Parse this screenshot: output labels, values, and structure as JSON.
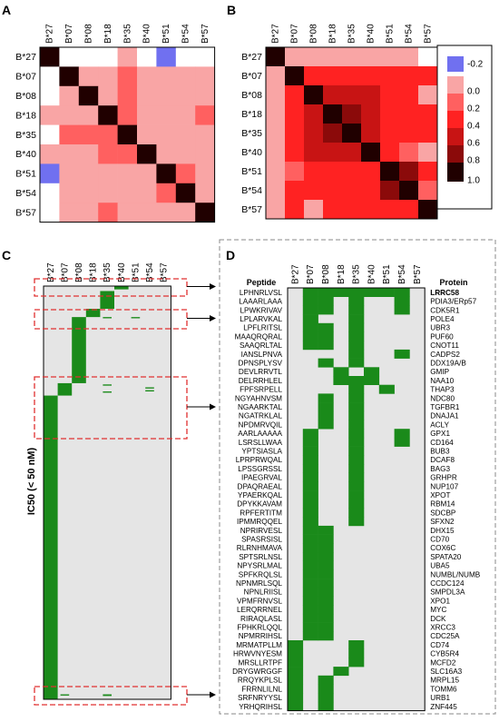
{
  "panels": {
    "a": "A",
    "b": "B",
    "c": "C",
    "d": "D"
  },
  "alleles": [
    "B*27",
    "B*07",
    "B*08",
    "B*18",
    "B*35",
    "B*40",
    "B*51",
    "B*54",
    "B*57"
  ],
  "colors": {
    "neg": "#7070f0",
    "c0": "#f9a5a5",
    "c1": "#ff6060",
    "c2": "#ff2222",
    "c3": "#c81414",
    "c4": "#8b0a0a",
    "c5": "#200000",
    "white": "#ffffff",
    "green": "#1a8a1a",
    "grey": "#e5e5e5",
    "dash": "#e03030"
  },
  "colorbar": {
    "labels": [
      "-0.2",
      "0.0",
      "0.2",
      "0.4",
      "0.6",
      "0.8",
      "1.0"
    ]
  },
  "ic50_label": "IC50 (< 50 nM)",
  "panel_d": {
    "peptide_header": "Peptide",
    "protein_header": "Protein"
  },
  "chart_data": [
    {
      "type": "heatmap",
      "panel": "A",
      "x": [
        "B*27",
        "B*07",
        "B*08",
        "B*18",
        "B*35",
        "B*40",
        "B*51",
        "B*54",
        "B*57"
      ],
      "y": [
        "B*27",
        "B*07",
        "B*08",
        "B*18",
        "B*35",
        "B*40",
        "B*51",
        "B*54",
        "B*57"
      ],
      "values": [
        [
          1.0,
          0.0,
          0.0,
          0.0,
          0.1,
          0.0,
          -0.2,
          0.0,
          0.0
        ],
        [
          0.0,
          1.0,
          0.1,
          0.1,
          0.2,
          0.1,
          0.1,
          0.1,
          0.1
        ],
        [
          0.0,
          0.1,
          1.0,
          0.1,
          0.2,
          0.1,
          0.1,
          0.1,
          0.1
        ],
        [
          0.1,
          0.1,
          0.1,
          1.0,
          0.2,
          0.1,
          0.1,
          0.1,
          0.2
        ],
        [
          0.0,
          0.2,
          0.2,
          0.2,
          1.0,
          0.1,
          0.1,
          0.1,
          0.1
        ],
        [
          0.1,
          0.1,
          0.1,
          0.2,
          0.2,
          1.0,
          0.1,
          0.1,
          0.1
        ],
        [
          -0.2,
          0.1,
          0.1,
          0.1,
          0.1,
          0.1,
          1.0,
          0.2,
          0.1
        ],
        [
          0.0,
          0.1,
          0.1,
          0.1,
          0.1,
          0.1,
          0.2,
          1.0,
          0.1
        ],
        [
          0.0,
          0.1,
          0.1,
          0.2,
          0.1,
          0.1,
          0.1,
          0.1,
          1.0
        ]
      ],
      "scale": [
        -0.2,
        1.0
      ]
    },
    {
      "type": "heatmap",
      "panel": "B",
      "x": [
        "B*27",
        "B*07",
        "B*08",
        "B*18",
        "B*35",
        "B*40",
        "B*51",
        "B*54",
        "B*57"
      ],
      "y": [
        "B*27",
        "B*07",
        "B*08",
        "B*18",
        "B*35",
        "B*40",
        "B*51",
        "B*54",
        "B*57"
      ],
      "values": [
        [
          1.0,
          0.1,
          0.1,
          0.1,
          0.1,
          0.1,
          0.1,
          0.1,
          0.0
        ],
        [
          0.1,
          1.0,
          0.3,
          0.3,
          0.3,
          0.3,
          0.3,
          0.3,
          0.3
        ],
        [
          0.1,
          0.3,
          1.0,
          0.4,
          0.4,
          0.4,
          0.3,
          0.3,
          0.1
        ],
        [
          0.1,
          0.3,
          0.4,
          1.0,
          0.6,
          0.4,
          0.3,
          0.3,
          0.3
        ],
        [
          0.1,
          0.3,
          0.4,
          0.6,
          1.0,
          0.4,
          0.3,
          0.3,
          0.3
        ],
        [
          0.1,
          0.3,
          0.4,
          0.4,
          0.4,
          1.0,
          0.3,
          0.2,
          0.1
        ],
        [
          0.1,
          0.2,
          0.3,
          0.3,
          0.3,
          0.3,
          1.0,
          0.6,
          0.3
        ],
        [
          0.1,
          0.3,
          0.3,
          0.3,
          0.3,
          0.3,
          0.6,
          1.0,
          0.2
        ],
        [
          0.1,
          0.3,
          0.1,
          0.3,
          0.3,
          0.3,
          0.3,
          0.3,
          1.0
        ]
      ],
      "scale": [
        -0.2,
        1.0
      ]
    },
    {
      "type": "heatmap",
      "panel": "C",
      "x": [
        "B*27",
        "B*07",
        "B*08",
        "B*18",
        "B*35",
        "B*40",
        "B*51",
        "B*54",
        "B*57"
      ],
      "description_binary": true,
      "bands": [
        {
          "col": 5,
          "start": 0.0,
          "end": 0.008,
          "thin": false
        },
        {
          "col": 4,
          "start": 0.012,
          "end": 0.055,
          "thin": false
        },
        {
          "col": 3,
          "start": 0.055,
          "end": 0.075,
          "thin": false
        },
        {
          "col": 2,
          "start": 0.075,
          "end": 0.235,
          "thin": false
        },
        {
          "col": 1,
          "start": 0.235,
          "end": 0.265,
          "thin": false
        },
        {
          "col": 0,
          "start": 0.265,
          "end": 1.0,
          "thin": false
        },
        {
          "col": 4,
          "start": 0.075,
          "end": 0.078,
          "thin": true
        },
        {
          "col": 6,
          "start": 0.075,
          "end": 0.078,
          "thin": true
        },
        {
          "col": 4,
          "start": 0.238,
          "end": 0.241,
          "thin": true
        },
        {
          "col": 4,
          "start": 0.255,
          "end": 0.258,
          "thin": true
        },
        {
          "col": 7,
          "start": 0.245,
          "end": 0.248,
          "thin": true
        },
        {
          "col": 7,
          "start": 0.252,
          "end": 0.255,
          "thin": true
        },
        {
          "col": 1,
          "start": 0.988,
          "end": 0.991,
          "thin": true
        },
        {
          "col": 4,
          "start": 0.988,
          "end": 0.992,
          "thin": true
        }
      ]
    },
    {
      "type": "heatmap",
      "panel": "D",
      "x": [
        "B*27",
        "B*07",
        "B*08",
        "B*18",
        "B*35",
        "B*40",
        "B*51",
        "B*54",
        "B*57"
      ],
      "rows": [
        {
          "peptide": "LPHNRLVSL",
          "protein": "LRRC58",
          "highlight": "bold-purple",
          "cols": [
            1,
            2,
            3,
            4,
            5,
            6,
            7
          ]
        },
        {
          "peptide": "LAAARLAAA",
          "protein": "PDIA3/ERp57",
          "highlight": "purple",
          "cols": [
            1,
            2,
            4,
            7
          ]
        },
        {
          "peptide": "LPWKRIVAV",
          "protein": "CDK5R1",
          "highlight": "purple",
          "cols": [
            1,
            2,
            4,
            7
          ]
        },
        {
          "peptide": "LPLARVKAL",
          "protein": "POLE4",
          "highlight": "purple",
          "cols": [
            1,
            4
          ]
        },
        {
          "peptide": "LPFLRITSL",
          "protein": "UBR3",
          "highlight": "purple",
          "cols": [
            1,
            2,
            4
          ]
        },
        {
          "peptide": "MAAQRQRAL",
          "protein": "PUF60",
          "highlight": "purple",
          "cols": [
            1,
            2,
            4
          ]
        },
        {
          "peptide": "SAAQRLTAL",
          "protein": "CNOT11",
          "highlight": "purple",
          "cols": [
            1,
            2,
            4
          ]
        },
        {
          "peptide": "IANSLPNVA",
          "protein": "CADPS2",
          "highlight": "",
          "cols": [
            4,
            7
          ]
        },
        {
          "peptide": "DPNSPLYSV",
          "protein": "DDX19A/B",
          "highlight": "",
          "cols": [
            2,
            4
          ]
        },
        {
          "peptide": "DEVLRRVTL",
          "protein": "GMIP",
          "highlight": "",
          "cols": [
            3,
            5
          ]
        },
        {
          "peptide": "DELRRHLEL",
          "protein": "NAA10",
          "highlight": "",
          "cols": [
            3,
            4,
            5
          ]
        },
        {
          "peptide": "FPFSRPELL",
          "protein": "THAP3",
          "highlight": "",
          "cols": [
            4,
            6
          ]
        },
        {
          "peptide": "NGYAHNVSM",
          "protein": "NDC80",
          "highlight": "",
          "cols": [
            2,
            4
          ]
        },
        {
          "peptide": "NGAARKTAL",
          "protein": "TGFBR1",
          "highlight": "",
          "cols": [
            2,
            4
          ]
        },
        {
          "peptide": "NGATRKLAL",
          "protein": "DNAJA1",
          "highlight": "",
          "cols": [
            2,
            4
          ]
        },
        {
          "peptide": "NPDMRVQIL",
          "protein": "ACLY",
          "highlight": "",
          "cols": [
            2,
            4
          ]
        },
        {
          "peptide": "AARLAAAAA",
          "protein": "GPX1",
          "highlight": "",
          "cols": [
            1,
            4,
            7
          ]
        },
        {
          "peptide": "LSRSLLWAA",
          "protein": "CD164",
          "highlight": "",
          "cols": [
            1,
            4,
            7
          ]
        },
        {
          "peptide": "YPTSIASLA",
          "protein": "BUB3",
          "highlight": "",
          "cols": [
            1,
            4
          ]
        },
        {
          "peptide": "LPRPRWQAL",
          "protein": "DCAF8",
          "highlight": "",
          "cols": [
            1,
            4
          ]
        },
        {
          "peptide": "LPSSGRSSL",
          "protein": "BAG3",
          "highlight": "",
          "cols": [
            1,
            4
          ]
        },
        {
          "peptide": "IPAEGRVAL",
          "protein": "GRHPR",
          "highlight": "",
          "cols": [
            1,
            4
          ]
        },
        {
          "peptide": "DPAQRAEAL",
          "protein": "NUP107",
          "highlight": "",
          "cols": [
            1,
            4
          ]
        },
        {
          "peptide": "YPAERKQAL",
          "protein": "XPOT",
          "highlight": "",
          "cols": [
            1,
            4
          ]
        },
        {
          "peptide": "DPYKKAVAM",
          "protein": "RBM14",
          "highlight": "",
          "cols": [
            1,
            4
          ]
        },
        {
          "peptide": "RPFERTITM",
          "protein": "SDCBP",
          "highlight": "",
          "cols": [
            1,
            4
          ]
        },
        {
          "peptide": "IPMMRQQEL",
          "protein": "SFXN2",
          "highlight": "",
          "cols": [
            1,
            4
          ]
        },
        {
          "peptide": "NPRIRVESL",
          "protein": "DHX15",
          "highlight": "",
          "cols": [
            1,
            2
          ]
        },
        {
          "peptide": "SPASRSISL",
          "protein": "CD70",
          "highlight": "",
          "cols": [
            1,
            2
          ]
        },
        {
          "peptide": "RLRNHMAVA",
          "protein": "COX6C",
          "highlight": "",
          "cols": [
            1,
            2
          ]
        },
        {
          "peptide": "SPTSRLNSL",
          "protein": "SPATA20",
          "highlight": "",
          "cols": [
            1,
            2
          ]
        },
        {
          "peptide": "NPYSRLMAL",
          "protein": "UBA5",
          "highlight": "",
          "cols": [
            1,
            2
          ]
        },
        {
          "peptide": "SPFKRQLSL",
          "protein": "NUMBL/NUMB",
          "highlight": "",
          "cols": [
            1,
            2
          ]
        },
        {
          "peptide": "NPNMRLSQL",
          "protein": "CCDC124",
          "highlight": "",
          "cols": [
            1,
            2
          ]
        },
        {
          "peptide": "NPNLRIISL",
          "protein": "SMPDL3A",
          "highlight": "",
          "cols": [
            1,
            2
          ]
        },
        {
          "peptide": "VPMFRNVSL",
          "protein": "XPO1",
          "highlight": "",
          "cols": [
            1,
            2
          ]
        },
        {
          "peptide": "LERQRRNEL",
          "protein": "MYC",
          "highlight": "",
          "cols": [
            1,
            2
          ]
        },
        {
          "peptide": "RIRAQLASL",
          "protein": "DCK",
          "highlight": "",
          "cols": [
            1,
            2
          ]
        },
        {
          "peptide": "FPHKRLQQL",
          "protein": "XRCC3",
          "highlight": "",
          "cols": [
            1,
            2
          ]
        },
        {
          "peptide": "NPMRRIHSL",
          "protein": "CDC25A",
          "highlight": "",
          "cols": [
            1,
            2
          ]
        },
        {
          "peptide": "MRMATPLLM",
          "protein": "CD74",
          "highlight": "",
          "cols": [
            0,
            4
          ]
        },
        {
          "peptide": "HRWVNYESM",
          "protein": "CYB5R4",
          "highlight": "",
          "cols": [
            0,
            4
          ]
        },
        {
          "peptide": "MRSLLRTPF",
          "protein": "MCFD2",
          "highlight": "",
          "cols": [
            0,
            4
          ]
        },
        {
          "peptide": "DRYGWRGGF",
          "protein": "SLC16A3",
          "highlight": "",
          "cols": [
            0,
            3
          ]
        },
        {
          "peptide": "RRQYKPLSL",
          "protein": "MRPL15",
          "highlight": "",
          "cols": [
            0,
            2
          ]
        },
        {
          "peptide": "FRRNLILNL",
          "protein": "TOMM6",
          "highlight": "",
          "cols": [
            0,
            2
          ]
        },
        {
          "peptide": "SRFNRYYSL",
          "protein": "URB1",
          "highlight": "",
          "cols": [
            0,
            2
          ]
        },
        {
          "peptide": "YRHQRIHSL",
          "protein": "ZNF445",
          "highlight": "",
          "cols": [
            0,
            2
          ]
        }
      ]
    }
  ]
}
